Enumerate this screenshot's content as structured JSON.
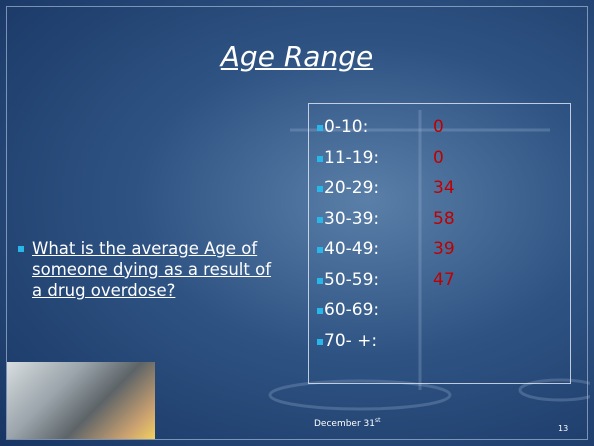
{
  "title": "Age Range",
  "question": "What is the average Age of someone dying as a result of a drug overdose?",
  "list": [
    {
      "range": "0-10:",
      "value": 0
    },
    {
      "range": "11-19:",
      "value": 0
    },
    {
      "range": "20-29:",
      "value": 34
    },
    {
      "range": "30-39:",
      "value": 58
    },
    {
      "range": "40-49:",
      "value": 39
    },
    {
      "range": "50-59:",
      "value": 47
    },
    {
      "range": "60-69:"
    },
    {
      "range": "70- +:"
    }
  ],
  "footer": {
    "date": "December 31",
    "suffix": "st"
  },
  "page_number": 13
}
